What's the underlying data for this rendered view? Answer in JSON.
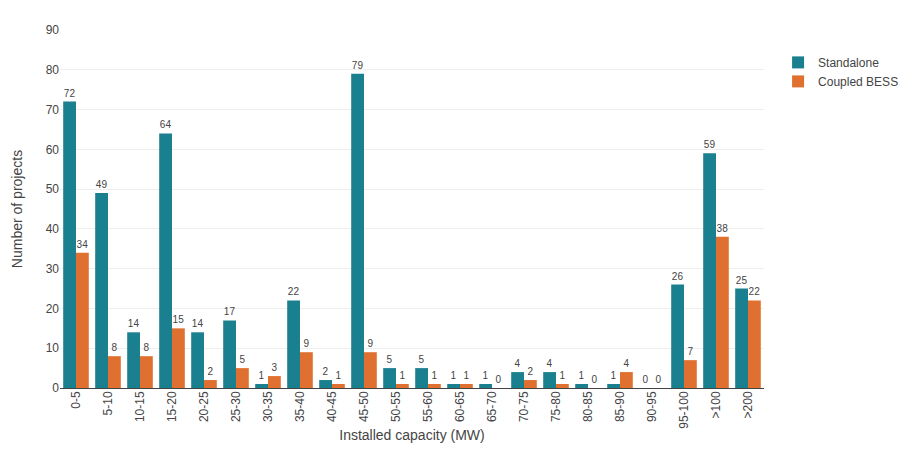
{
  "chart_data": {
    "type": "bar",
    "categories": [
      "0-5",
      "5-10",
      "10-15",
      "15-20",
      "20-25",
      "25-30",
      "30-35",
      "35-40",
      "40-45",
      "45-50",
      "50-55",
      "55-60",
      "60-65",
      "65-70",
      "70-75",
      "75-80",
      "80-85",
      "85-90",
      "90-95",
      "95-100",
      ">100",
      ">200"
    ],
    "series": [
      {
        "name": "Standalone",
        "color": "#1a7f8e",
        "values": [
          72,
          49,
          14,
          64,
          14,
          17,
          1,
          22,
          2,
          79,
          5,
          5,
          1,
          1,
          4,
          4,
          1,
          1,
          0,
          26,
          59,
          25
        ]
      },
      {
        "name": "Coupled BESS",
        "color": "#e07030",
        "values": [
          34,
          8,
          8,
          15,
          2,
          5,
          3,
          9,
          1,
          9,
          1,
          1,
          1,
          0,
          2,
          1,
          0,
          4,
          0,
          7,
          38,
          22
        ]
      }
    ],
    "xlabel": "Installed capacity (MW)",
    "ylabel": "Number of projects",
    "ylim": [
      0,
      90
    ],
    "yticks": [
      0,
      10,
      20,
      30,
      40,
      50,
      60,
      70,
      80,
      90
    ],
    "grid": true,
    "data_labels": true,
    "legend": "right"
  }
}
